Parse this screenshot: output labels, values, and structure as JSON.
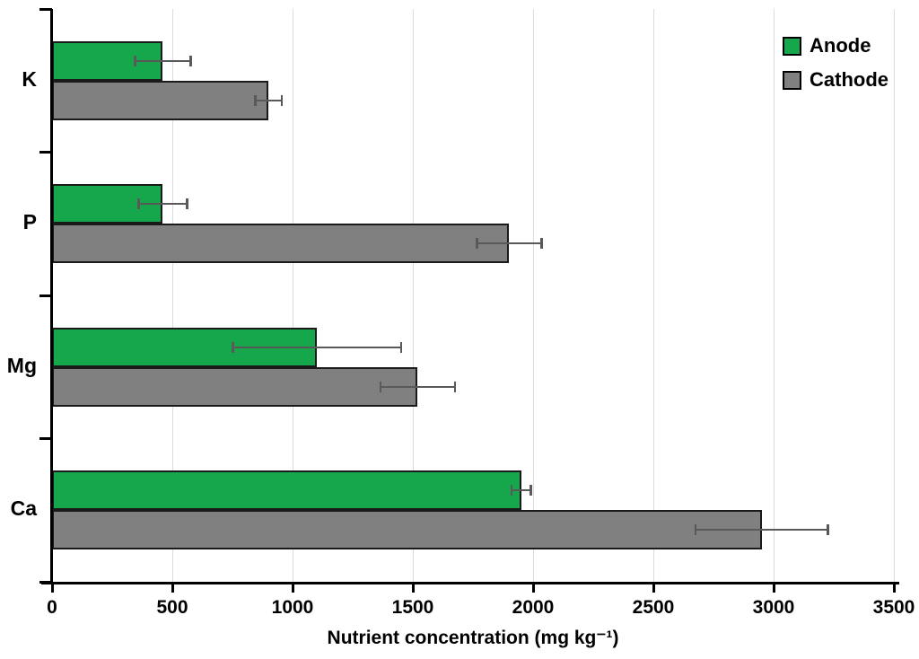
{
  "chart_data": {
    "type": "bar",
    "orientation": "horizontal",
    "title": "",
    "xlabel": "Nutrient concentration (mg kg⁻¹)",
    "ylabel": "",
    "categories": [
      "K",
      "P",
      "Mg",
      "Ca"
    ],
    "series": [
      {
        "name": "Anode",
        "color": "#16A74C",
        "values": [
          460,
          460,
          1100,
          1950
        ],
        "errors": [
          115,
          100,
          350,
          40
        ]
      },
      {
        "name": "Cathode",
        "color": "#808080",
        "values": [
          900,
          1900,
          1520,
          2950
        ],
        "errors": [
          55,
          135,
          155,
          275
        ]
      }
    ],
    "xlim": [
      0,
      3500
    ],
    "xticks": [
      0,
      500,
      1000,
      1500,
      2000,
      2500,
      3000,
      3500
    ],
    "grid": true,
    "legend_position": "top-right",
    "colors": {
      "grid": "#DCDCDC",
      "axis": "#000000",
      "bar_border": "#1A1A1A",
      "error_bar": "#595959",
      "text": "#000000"
    }
  }
}
